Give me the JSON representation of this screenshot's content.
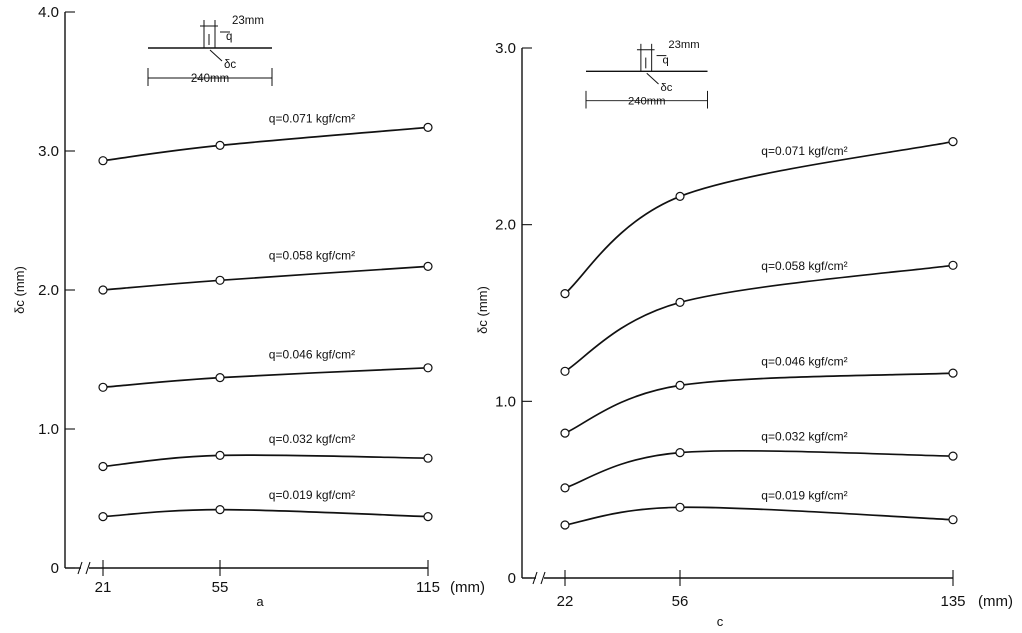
{
  "chart_data": [
    {
      "type": "line",
      "panel_label": "a",
      "ylabel": "δc (mm)",
      "x_unit_label": "(mm)",
      "x_ticks": [
        "21",
        "55",
        "115"
      ],
      "x": [
        21,
        55,
        115
      ],
      "ylim": [
        0,
        4.0
      ],
      "y_ticks": [
        "0",
        "1.0",
        "2.0",
        "3.0",
        "4.0"
      ],
      "grid": false,
      "series": [
        {
          "name": "q=0.071 kgf/cm²",
          "values": [
            2.93,
            3.04,
            3.17
          ]
        },
        {
          "name": "q=0.058 kgf/cm²",
          "values": [
            2.0,
            2.07,
            2.17
          ]
        },
        {
          "name": "q=0.046 kgf/cm²",
          "values": [
            1.3,
            1.37,
            1.44
          ]
        },
        {
          "name": "q=0.032 kgf/cm²",
          "values": [
            0.73,
            0.81,
            0.79
          ]
        },
        {
          "name": "q=0.019 kgf/cm²",
          "values": [
            0.37,
            0.42,
            0.37
          ]
        }
      ],
      "inset": {
        "width_label": "23mm",
        "load_label": "q",
        "span_label": "240mm",
        "deflection_label": "δc"
      }
    },
    {
      "type": "line",
      "panel_label": "c",
      "ylabel": "δc (mm)",
      "x_unit_label": "(mm)",
      "x_ticks": [
        "22",
        "56",
        "135"
      ],
      "x": [
        22,
        56,
        135
      ],
      "ylim": [
        0,
        3.0
      ],
      "y_ticks": [
        "0",
        "1.0",
        "2.0",
        "3.0"
      ],
      "grid": false,
      "series": [
        {
          "name": "q=0.071 kgf/cm²",
          "values": [
            1.61,
            2.16,
            2.47
          ]
        },
        {
          "name": "q=0.058 kgf/cm²",
          "values": [
            1.17,
            1.56,
            1.77
          ]
        },
        {
          "name": "q=0.046 kgf/cm²",
          "values": [
            0.82,
            1.09,
            1.16
          ]
        },
        {
          "name": "q=0.032 kgf/cm²",
          "values": [
            0.51,
            0.71,
            0.69
          ]
        },
        {
          "name": "q=0.019 kgf/cm²",
          "values": [
            0.3,
            0.4,
            0.33
          ]
        }
      ],
      "inset": {
        "width_label": "23mm",
        "load_label": "q",
        "span_label": "240mm",
        "deflection_label": "δc"
      }
    }
  ]
}
